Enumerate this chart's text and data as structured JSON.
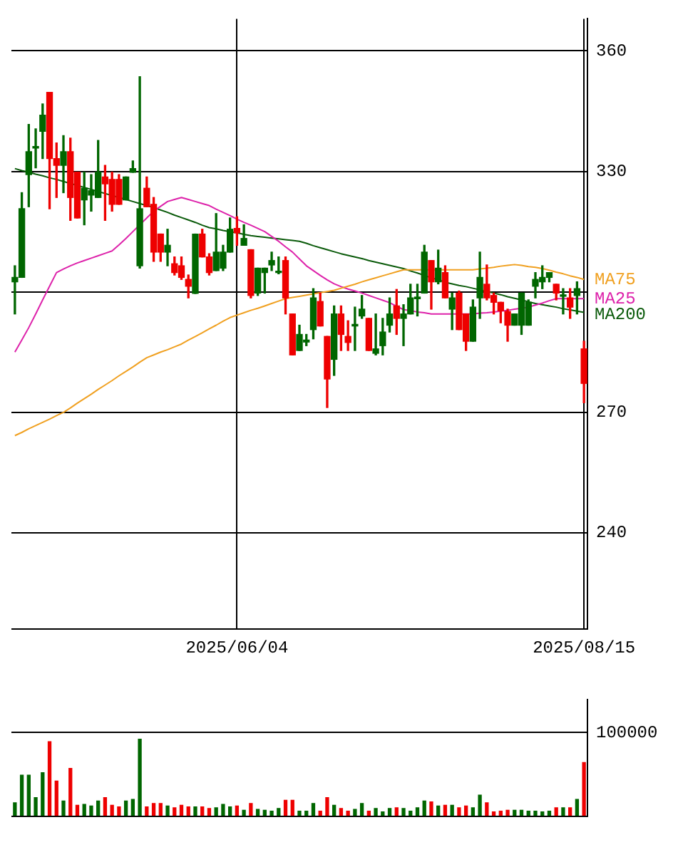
{
  "chart_data": [
    {
      "type": "candlestick",
      "categories": [
        null,
        null,
        null,
        null,
        null,
        null,
        null,
        null,
        null,
        null,
        null,
        null,
        null,
        null,
        null,
        null,
        null,
        null,
        null,
        null,
        null,
        null,
        null,
        null,
        null,
        null,
        null,
        null,
        null,
        null,
        null,
        null,
        "2025/06/04",
        null,
        null,
        null,
        null,
        null,
        null,
        null,
        null,
        null,
        null,
        null,
        null,
        null,
        null,
        null,
        null,
        null,
        null,
        null,
        null,
        null,
        null,
        null,
        null,
        null,
        null,
        null,
        null,
        null,
        null,
        null,
        null,
        null,
        null,
        null,
        null,
        null,
        null,
        null,
        null,
        null,
        null,
        null,
        null,
        null,
        null,
        null,
        null,
        null,
        "2025/08/15"
      ],
      "ohlc": [
        [
          302.5,
          306.5,
          294.5,
          303.6
        ],
        [
          303.6,
          324.7,
          303.6,
          320.7
        ],
        [
          329.2,
          341.7,
          321.2,
          334.9
        ],
        [
          335.8,
          340.6,
          330.9,
          336.2
        ],
        [
          340.0,
          346.8,
          333.2,
          344.0
        ],
        [
          349.7,
          349.7,
          320.7,
          333.2
        ],
        [
          333.2,
          337.1,
          323.5,
          331.5
        ],
        [
          331.5,
          338.9,
          324.7,
          334.9
        ],
        [
          334.9,
          338.3,
          317.8,
          323.5
        ],
        [
          329.8,
          329.8,
          318.4,
          318.4
        ],
        [
          322.9,
          329.8,
          316.7,
          325.8
        ],
        [
          324.1,
          329.2,
          320.1,
          325.2
        ],
        [
          323.5,
          337.7,
          323.5,
          329.8
        ],
        [
          328.6,
          331.5,
          317.8,
          326.9
        ],
        [
          328.0,
          329.8,
          320.1,
          321.8
        ],
        [
          328.0,
          329.2,
          321.8,
          321.8
        ],
        [
          322.9,
          328.6,
          322.9,
          328.6
        ],
        [
          329.8,
          332.6,
          329.8,
          330.7
        ],
        [
          306.5,
          353.6,
          305.9,
          320.7
        ],
        [
          325.8,
          328.6,
          321.2,
          321.2
        ],
        [
          321.8,
          323.5,
          307.6,
          309.9
        ],
        [
          314.4,
          314.4,
          307.6,
          309.9
        ],
        [
          309.9,
          315.6,
          306.5,
          311.6
        ],
        [
          307.0,
          308.7,
          304.2,
          304.8
        ],
        [
          306.5,
          308.7,
          303.1,
          303.6
        ],
        [
          303.1,
          304.2,
          298.5,
          301.4
        ],
        [
          299.6,
          314.4,
          299.6,
          314.4
        ],
        [
          314.4,
          315.6,
          308.7,
          308.7
        ],
        [
          308.7,
          309.5,
          304.2,
          304.8
        ],
        [
          305.3,
          319.5,
          305.3,
          309.9
        ],
        [
          305.9,
          311.6,
          305.3,
          309.9
        ],
        [
          309.9,
          318.4,
          309.9,
          315.6
        ],
        [
          315.8,
          318.7,
          311.6,
          314.7
        ],
        [
          311.6,
          316.7,
          311.6,
          313.3
        ],
        [
          310.5,
          310.5,
          298.5,
          299.1
        ],
        [
          299.7,
          305.9,
          299.1,
          305.9
        ],
        [
          304.8,
          305.9,
          299.7,
          305.9
        ],
        [
          306.7,
          309.9,
          305.3,
          307.8
        ],
        [
          304.8,
          308.7,
          304.5,
          305.0
        ],
        [
          307.8,
          308.7,
          294.5,
          298.5
        ],
        [
          294.5,
          294.5,
          284.3,
          284.3
        ],
        [
          285.4,
          291.7,
          285.4,
          289.4
        ],
        [
          287.5,
          289.4,
          286.6,
          288.0
        ],
        [
          290.6,
          300.8,
          288.3,
          298.5
        ],
        [
          297.6,
          299.7,
          291.5,
          291.5
        ],
        [
          288.9,
          288.9,
          271.2,
          278.3
        ],
        [
          283.2,
          296.5,
          279.2,
          294.5
        ],
        [
          294.5,
          296.5,
          285.4,
          289.4
        ],
        [
          288.9,
          292.8,
          285.4,
          287.4
        ],
        [
          291.5,
          296.2,
          285.4,
          291.9
        ],
        [
          294.0,
          299.1,
          293.4,
          295.7
        ],
        [
          293.4,
          293.4,
          285.4,
          285.4
        ],
        [
          284.7,
          294.5,
          284.3,
          285.8
        ],
        [
          286.6,
          293.4,
          284.3,
          290.0
        ],
        [
          291.7,
          298.5,
          290.0,
          294.5
        ],
        [
          296.5,
          300.6,
          289.4,
          293.4
        ],
        [
          293.4,
          296.8,
          286.6,
          294.5
        ],
        [
          294.5,
          301.9,
          294.5,
          298.5
        ],
        [
          298.3,
          301.9,
          294.0,
          298.7
        ],
        [
          299.7,
          311.6,
          299.7,
          309.9
        ],
        [
          307.8,
          307.8,
          295.7,
          302.5
        ],
        [
          302.5,
          310.4,
          302.0,
          305.9
        ],
        [
          304.8,
          306.5,
          298.5,
          298.5
        ],
        [
          295.7,
          299.7,
          290.6,
          298.5
        ],
        [
          299.7,
          300.2,
          290.6,
          290.6
        ],
        [
          294.5,
          294.5,
          285.4,
          287.7
        ],
        [
          287.7,
          298.0,
          287.7,
          296.2
        ],
        [
          298.5,
          309.9,
          293.4,
          303.6
        ],
        [
          301.9,
          306.7,
          298.0,
          298.5
        ],
        [
          299.1,
          299.7,
          294.5,
          297.4
        ],
        [
          297.4,
          297.4,
          292.3,
          295.3
        ],
        [
          295.1,
          295.7,
          287.7,
          291.7
        ],
        [
          291.7,
          294.5,
          291.7,
          294.5
        ],
        [
          291.7,
          299.7,
          289.4,
          299.7
        ],
        [
          291.7,
          298.0,
          291.7,
          297.4
        ],
        [
          301.4,
          304.8,
          298.5,
          303.1
        ],
        [
          302.5,
          306.5,
          300.8,
          303.6
        ],
        [
          303.6,
          304.8,
          302.5,
          304.8
        ],
        [
          301.9,
          301.9,
          298.0,
          299.7
        ],
        [
          298.9,
          300.8,
          294.5,
          299.1
        ],
        [
          298.5,
          300.8,
          293.4,
          296.2
        ],
        [
          299.1,
          302.5,
          294.5,
          300.8
        ],
        [
          285.8,
          287.7,
          272.4,
          277.2
        ]
      ],
      "colors": [
        "#006600",
        "#006600",
        "#006600",
        "#006600",
        "#006600",
        "#ee0000",
        "#ee0000",
        "#006600",
        "#ee0000",
        "#ee0000",
        "#006600",
        "#006600",
        "#006600",
        "#ee0000",
        "#ee0000",
        "#ee0000",
        "#006600",
        "#006600",
        "#006600",
        "#ee0000",
        "#ee0000",
        "#ee0000",
        "#006600",
        "#ee0000",
        "#ee0000",
        "#ee0000",
        "#006600",
        "#ee0000",
        "#ee0000",
        "#006600",
        "#006600",
        "#006600",
        "#ee0000",
        "#006600",
        "#ee0000",
        "#006600",
        "#006600",
        "#006600",
        "#006600",
        "#ee0000",
        "#ee0000",
        "#006600",
        "#006600",
        "#006600",
        "#ee0000",
        "#ee0000",
        "#006600",
        "#ee0000",
        "#ee0000",
        "#006600",
        "#006600",
        "#ee0000",
        "#006600",
        "#006600",
        "#006600",
        "#ee0000",
        "#006600",
        "#006600",
        "#006600",
        "#006600",
        "#ee0000",
        "#006600",
        "#ee0000",
        "#006600",
        "#ee0000",
        "#ee0000",
        "#006600",
        "#006600",
        "#ee0000",
        "#ee0000",
        "#ee0000",
        "#ee0000",
        "#006600",
        "#006600",
        "#006600",
        "#006600",
        "#006600",
        "#006600",
        "#ee0000",
        "#006600",
        "#ee0000",
        "#006600",
        "#ee0000"
      ],
      "series": [
        {
          "type": "line",
          "name": "MA75",
          "color": "#f0a020",
          "values": [
            264.2,
            265.0,
            265.9,
            266.7,
            267.5,
            268.3,
            269.2,
            270.0,
            271.1,
            272.3,
            273.4,
            274.5,
            275.7,
            276.8,
            277.9,
            279.1,
            280.2,
            281.3,
            282.5,
            283.6,
            284.3,
            285.0,
            285.6,
            286.3,
            287.0,
            288.0,
            288.9,
            289.8,
            290.8,
            291.7,
            292.7,
            293.6,
            294.2,
            294.8,
            295.4,
            295.9,
            296.5,
            297.1,
            297.7,
            298.3,
            298.6,
            298.9,
            299.2,
            299.5,
            299.8,
            300.1,
            300.4,
            300.9,
            301.4,
            301.9,
            302.5,
            303.0,
            303.5,
            304.0,
            304.5,
            305.0,
            305.5,
            305.5,
            305.5,
            305.5,
            null,
            305.5,
            305.5,
            305.5,
            305.5,
            305.5,
            305.5,
            305.7,
            305.9,
            306.1,
            306.4,
            306.6,
            306.8,
            306.6,
            306.3,
            306.1,
            305.8,
            305.4,
            304.9,
            304.5,
            304.0,
            303.6,
            303.1
          ]
        },
        {
          "type": "line",
          "name": "MA25",
          "color": "#dd22aa",
          "values": [
            285.0,
            288.0,
            291.1,
            294.5,
            298.0,
            301.4,
            304.8,
            305.7,
            306.5,
            307.2,
            307.8,
            308.4,
            309.0,
            309.6,
            310.2,
            311.7,
            313.3,
            315.0,
            316.7,
            318.4,
            320.1,
            321.3,
            322.5,
            323.0,
            323.5,
            323.0,
            322.5,
            322.0,
            321.5,
            320.6,
            319.8,
            319.0,
            318.1,
            317.3,
            316.6,
            315.8,
            315.0,
            313.8,
            312.6,
            311.2,
            309.9,
            308.2,
            306.5,
            305.3,
            304.1,
            303.0,
            302.0,
            301.3,
            300.7,
            300.2,
            299.7,
            299.1,
            298.5,
            297.9,
            297.3,
            296.4,
            295.6,
            295.3,
            295.0,
            294.8,
            294.5,
            294.5,
            294.5,
            294.5,
            294.5,
            null,
            294.5,
            294.7,
            294.8,
            295.0,
            295.2,
            295.4,
            295.7,
            295.9,
            296.2,
            296.7,
            297.2,
            297.8,
            298.3,
            298.3,
            298.3,
            298.3,
            298.3
          ]
        },
        {
          "type": "line",
          "name": "MA200",
          "color": "#0a5a0a",
          "values": [
            330.7,
            330.2,
            329.8,
            329.3,
            328.9,
            328.4,
            328.0,
            327.5,
            327.0,
            326.5,
            326.0,
            325.5,
            325.0,
            324.5,
            324.0,
            323.5,
            323.0,
            322.5,
            322.0,
            321.5,
            321.0,
            320.4,
            319.8,
            319.1,
            318.5,
            317.9,
            317.3,
            316.6,
            316.0,
            315.7,
            315.3,
            315.0,
            314.7,
            314.3,
            314.0,
            313.8,
            313.6,
            313.4,
            313.2,
            313.0,
            312.8,
            312.6,
            312.1,
            311.5,
            311.0,
            310.5,
            310.0,
            309.5,
            309.1,
            308.7,
            308.3,
            307.8,
            307.4,
            307.0,
            306.6,
            306.2,
            305.8,
            305.2,
            304.7,
            304.1,
            303.5,
            303.0,
            302.4,
            302.0,
            301.6,
            301.3,
            300.9,
            300.5,
            300.1,
            299.7,
            299.3,
            298.8,
            298.4,
            298.0,
            297.5,
            297.1,
            296.8,
            296.5,
            296.2,
            295.8,
            295.5,
            295.2,
            294.9
          ]
        }
      ],
      "ylim": [
        216,
        368
      ],
      "yticks": [
        240,
        270,
        {
          "value": 300,
          "label": null
        },
        330,
        360
      ],
      "grid": true
    },
    {
      "type": "bar",
      "tick_labels": "y",
      "categories": [
        null,
        null,
        null,
        null,
        null,
        null,
        null,
        null,
        null,
        null,
        null,
        null,
        null,
        null,
        null,
        null,
        null,
        null,
        null,
        null,
        null,
        null,
        null,
        null,
        null,
        null,
        null,
        null,
        null,
        null,
        null,
        null,
        "2025/06/04",
        null,
        null,
        null,
        null,
        null,
        null,
        null,
        null,
        null,
        null,
        null,
        null,
        null,
        null,
        null,
        null,
        null,
        null,
        null,
        null,
        null,
        null,
        null,
        null,
        null,
        null,
        null,
        null,
        null,
        null,
        null,
        null,
        null,
        null,
        null,
        null,
        null,
        null,
        null,
        null,
        null,
        null,
        null,
        null,
        null,
        null,
        null,
        null,
        null,
        "2025/08/15"
      ],
      "values": [
        16000,
        49000,
        49000,
        22000,
        52000,
        89000,
        42000,
        18000,
        57000,
        13000,
        14000,
        12000,
        18000,
        22000,
        13000,
        11000,
        18000,
        20000,
        92000,
        11000,
        15000,
        15000,
        12000,
        10000,
        13000,
        11000,
        11000,
        11000,
        9000,
        10000,
        14000,
        11000,
        12000,
        7000,
        15000,
        8000,
        7000,
        6000,
        9000,
        19000,
        19000,
        6000,
        6000,
        15000,
        6000,
        22000,
        13000,
        9000,
        6000,
        8000,
        15000,
        6000,
        9000,
        5000,
        9000,
        10000,
        9000,
        6000,
        10000,
        18000,
        17000,
        12000,
        13000,
        13000,
        10000,
        12000,
        10000,
        25000,
        16000,
        5000,
        6000,
        7000,
        7000,
        7000,
        6000,
        6000,
        5000,
        6000,
        10000,
        10000,
        10000,
        20000,
        64000
      ],
      "ylim": [
        0,
        139000
      ],
      "yticks": [
        {
          "value": 0,
          "label": null
        },
        100000
      ],
      "grid": "y",
      "colors": [
        "#006600",
        "#006600",
        "#006600",
        "#006600",
        "#006600",
        "#ee0000",
        "#ee0000",
        "#006600",
        "#ee0000",
        "#ee0000",
        "#006600",
        "#006600",
        "#006600",
        "#ee0000",
        "#ee0000",
        "#ee0000",
        "#006600",
        "#006600",
        "#006600",
        "#ee0000",
        "#ee0000",
        "#ee0000",
        "#006600",
        "#ee0000",
        "#ee0000",
        "#ee0000",
        "#006600",
        "#ee0000",
        "#ee0000",
        "#006600",
        "#006600",
        "#006600",
        "#ee0000",
        "#006600",
        "#ee0000",
        "#006600",
        "#006600",
        "#006600",
        "#006600",
        "#ee0000",
        "#ee0000",
        "#006600",
        "#006600",
        "#006600",
        "#ee0000",
        "#ee0000",
        "#006600",
        "#ee0000",
        "#ee0000",
        "#006600",
        "#006600",
        "#ee0000",
        "#006600",
        "#006600",
        "#006600",
        "#ee0000",
        "#006600",
        "#006600",
        "#006600",
        "#006600",
        "#ee0000",
        "#006600",
        "#ee0000",
        "#006600",
        "#ee0000",
        "#ee0000",
        "#006600",
        "#006600",
        "#ee0000",
        "#ee0000",
        "#ee0000",
        "#ee0000",
        "#006600",
        "#006600",
        "#006600",
        "#006600",
        "#006600",
        "#006600",
        "#ee0000",
        "#006600",
        "#ee0000",
        "#006600",
        "#ee0000"
      ],
      "legend": false
    }
  ]
}
